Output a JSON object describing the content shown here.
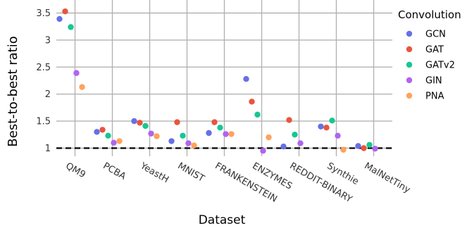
{
  "chart_data": {
    "type": "scatter",
    "xlabel": "Dataset",
    "ylabel": "Best-to-best ratio",
    "categories": [
      "QM9",
      "PCBA",
      "YeastH",
      "MNIST",
      "FRANKENSTEIN",
      "ENZYMES",
      "REDDIT-BINARY",
      "Synthie",
      "MalNetTiny"
    ],
    "yticks": [
      "1",
      "1.5",
      "2",
      "2.5",
      "3",
      "3.5"
    ],
    "ylim": [
      0.92,
      3.58
    ],
    "grid": true,
    "reference_line": {
      "y": 1,
      "style": "dashed"
    },
    "legend": {
      "title": "Convolution",
      "position": "right"
    },
    "series": [
      {
        "name": "GCN",
        "color": "#6670e6",
        "values": [
          3.39,
          1.3,
          1.5,
          1.13,
          1.28,
          2.28,
          1.03,
          1.4,
          1.04
        ]
      },
      {
        "name": "GAT",
        "color": "#e8553e",
        "values": [
          3.53,
          1.34,
          1.47,
          1.48,
          1.48,
          1.86,
          1.52,
          1.38,
          1.0
        ]
      },
      {
        "name": "GATv2",
        "color": "#16c791",
        "values": [
          3.24,
          1.23,
          1.41,
          1.23,
          1.38,
          1.62,
          1.25,
          1.51,
          1.06
        ]
      },
      {
        "name": "GIN",
        "color": "#b064f0",
        "values": [
          2.39,
          1.1,
          1.27,
          1.09,
          1.26,
          0.95,
          1.09,
          1.23,
          0.99
        ]
      },
      {
        "name": "PNA",
        "color": "#ffa25c",
        "values": [
          2.13,
          1.13,
          1.22,
          1.05,
          1.26,
          1.2,
          null,
          0.97,
          null
        ]
      }
    ]
  }
}
